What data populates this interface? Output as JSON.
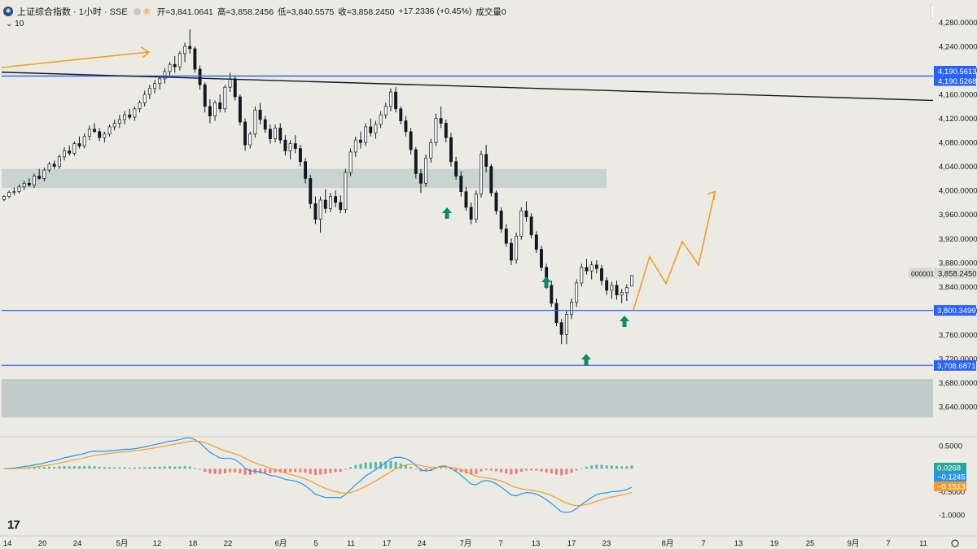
{
  "header": {
    "title": "上证综合指数 · 1小时 · SSE",
    "badge": "D",
    "open": "开=3,841.0641",
    "high": "高=3,858.2456",
    "low": "低=3,840.5575",
    "close": "收=3,858.2450",
    "change": "+17.2336 (+0.45%)",
    "volume": "成交量0",
    "sub": "10",
    "scale_mode": "point"
  },
  "chart_data": {
    "type": "candlestick",
    "symbol": "上证综合指数",
    "interval": "1小时",
    "exchange": "SSE",
    "price_axis": {
      "ticks": [
        3640,
        3680,
        3720,
        3760,
        3800,
        3840,
        3880,
        3920,
        3960,
        4000,
        4040,
        4080,
        4120,
        4160,
        4200,
        4240,
        4280
      ],
      "tick_labels": [
        "3,640.0000",
        "3,680.0000",
        "3,720.0000",
        "3,760.0000",
        "3,800.0000",
        "3,840.0000",
        "3,880.0000",
        "3,920.0000",
        "3,960.0000",
        "4,000.0000",
        "4,040.0000",
        "4,080.0000",
        "4,120.0000",
        "4,160.0000",
        "4,200.0000",
        "4,240.0000",
        "4,280.0000"
      ],
      "range": [
        3600,
        4300
      ]
    },
    "time_axis_labels": [
      "14",
      "20",
      "24",
      "5月",
      "12",
      "18",
      "22",
      "6月",
      "5",
      "11",
      "17",
      "24",
      "7月",
      "7",
      "13",
      "17",
      "23",
      "8月",
      "7",
      "13",
      "19",
      "25",
      "9月",
      "7",
      "11"
    ],
    "price_lines": [
      {
        "label": "4,190.5613",
        "value": 4190.5613,
        "color": "#2962ff"
      },
      {
        "label": "4,190.5268",
        "value": 4190.5268,
        "color": "#2962ff"
      },
      {
        "label": "3,800.3499",
        "value": 3800.3499,
        "color": "#2962ff"
      },
      {
        "label": "3,708.6871",
        "value": 3708.6871,
        "color": "#2962ff"
      }
    ],
    "last_price": {
      "symbol_code": "000001",
      "label": "3,858.2450",
      "value": 3858.245
    },
    "trendline": {
      "from": {
        "time": "14",
        "price": 4197
      },
      "to": {
        "time": "11",
        "price": 4150
      },
      "color": "#131722"
    },
    "zones": [
      {
        "from_price": 4004,
        "to_price": 4036,
        "color": "#c3cfcd"
      },
      {
        "from_price": 3622,
        "to_price": 3686,
        "color": "#b8c6c6"
      }
    ],
    "projection": {
      "color": "#f39c2b",
      "points": [
        3801,
        3890,
        3845,
        3915,
        3876,
        3998
      ]
    },
    "buy_arrows": 4,
    "candles": [
      [
        3985,
        3992,
        3982,
        3990
      ],
      [
        3990,
        4000,
        3987,
        3997
      ],
      [
        3997,
        4005,
        3992,
        3998
      ],
      [
        3998,
        4010,
        3995,
        4006
      ],
      [
        4006,
        4016,
        4001,
        4012
      ],
      [
        4012,
        4020,
        4006,
        4009
      ],
      [
        4009,
        4028,
        4004,
        4024
      ],
      [
        4024,
        4036,
        4018,
        4020
      ],
      [
        4020,
        4038,
        4015,
        4034
      ],
      [
        4034,
        4048,
        4030,
        4044
      ],
      [
        4044,
        4050,
        4036,
        4040
      ],
      [
        4040,
        4060,
        4036,
        4056
      ],
      [
        4056,
        4072,
        4050,
        4066
      ],
      [
        4066,
        4075,
        4058,
        4062
      ],
      [
        4062,
        4082,
        4058,
        4078
      ],
      [
        4078,
        4090,
        4070,
        4074
      ],
      [
        4074,
        4095,
        4070,
        4090
      ],
      [
        4090,
        4108,
        4084,
        4102
      ],
      [
        4102,
        4112,
        4096,
        4098
      ],
      [
        4098,
        4104,
        4082,
        4088
      ],
      [
        4088,
        4098,
        4080,
        4094
      ],
      [
        4094,
        4110,
        4090,
        4106
      ],
      [
        4106,
        4118,
        4100,
        4112
      ],
      [
        4112,
        4126,
        4104,
        4118
      ],
      [
        4118,
        4132,
        4110,
        4126
      ],
      [
        4126,
        4136,
        4118,
        4122
      ],
      [
        4122,
        4140,
        4116,
        4136
      ],
      [
        4136,
        4150,
        4130,
        4146
      ],
      [
        4146,
        4166,
        4140,
        4160
      ],
      [
        4160,
        4176,
        4152,
        4170
      ],
      [
        4170,
        4184,
        4162,
        4178
      ],
      [
        4178,
        4190,
        4168,
        4186
      ],
      [
        4186,
        4204,
        4178,
        4198
      ],
      [
        4198,
        4214,
        4190,
        4210
      ],
      [
        4210,
        4224,
        4196,
        4206
      ],
      [
        4206,
        4232,
        4200,
        4228
      ],
      [
        4228,
        4246,
        4214,
        4240
      ],
      [
        4240,
        4268,
        4228,
        4236
      ],
      [
        4236,
        4240,
        4196,
        4202
      ],
      [
        4202,
        4208,
        4168,
        4176
      ],
      [
        4176,
        4180,
        4130,
        4140
      ],
      [
        4140,
        4152,
        4112,
        4124
      ],
      [
        4124,
        4150,
        4116,
        4146
      ],
      [
        4146,
        4160,
        4130,
        4136
      ],
      [
        4136,
        4176,
        4130,
        4172
      ],
      [
        4172,
        4196,
        4164,
        4186
      ],
      [
        4186,
        4192,
        4150,
        4156
      ],
      [
        4156,
        4160,
        4108,
        4114
      ],
      [
        4114,
        4120,
        4066,
        4076
      ],
      [
        4076,
        4098,
        4070,
        4094
      ],
      [
        4094,
        4140,
        4088,
        4134
      ],
      [
        4134,
        4146,
        4110,
        4118
      ],
      [
        4118,
        4124,
        4096,
        4102
      ],
      [
        4102,
        4110,
        4078,
        4086
      ],
      [
        4086,
        4110,
        4080,
        4104
      ],
      [
        4104,
        4112,
        4078,
        4084
      ],
      [
        4084,
        4092,
        4058,
        4066
      ],
      [
        4066,
        4084,
        4052,
        4078
      ],
      [
        4078,
        4092,
        4062,
        4070
      ],
      [
        4070,
        4076,
        4040,
        4048
      ],
      [
        4048,
        4054,
        4012,
        4020
      ],
      [
        4020,
        4026,
        3970,
        3978
      ],
      [
        3978,
        3990,
        3944,
        3952
      ],
      [
        3952,
        3990,
        3930,
        3984
      ],
      [
        3984,
        4002,
        3962,
        3970
      ],
      [
        3970,
        3996,
        3964,
        3990
      ],
      [
        3990,
        4000,
        3972,
        3980
      ],
      [
        3980,
        3992,
        3962,
        3968
      ],
      [
        3968,
        4036,
        3962,
        4030
      ],
      [
        4030,
        4070,
        4024,
        4064
      ],
      [
        4064,
        4090,
        4056,
        4084
      ],
      [
        4084,
        4098,
        4070,
        4080
      ],
      [
        4080,
        4112,
        4074,
        4106
      ],
      [
        4106,
        4120,
        4090,
        4096
      ],
      [
        4096,
        4116,
        4086,
        4110
      ],
      [
        4110,
        4132,
        4104,
        4126
      ],
      [
        4126,
        4146,
        4120,
        4140
      ],
      [
        4140,
        4170,
        4132,
        4164
      ],
      [
        4164,
        4172,
        4130,
        4136
      ],
      [
        4136,
        4140,
        4110,
        4116
      ],
      [
        4116,
        4124,
        4090,
        4098
      ],
      [
        4098,
        4104,
        4060,
        4068
      ],
      [
        4068,
        4072,
        4020,
        4028
      ],
      [
        4028,
        4036,
        3996,
        4012
      ],
      [
        4012,
        4060,
        4006,
        4054
      ],
      [
        4054,
        4086,
        4046,
        4080
      ],
      [
        4080,
        4128,
        4074,
        4120
      ],
      [
        4120,
        4140,
        4104,
        4112
      ],
      [
        4112,
        4118,
        4080,
        4088
      ],
      [
        4088,
        4096,
        4040,
        4048
      ],
      [
        4048,
        4056,
        4018,
        4024
      ],
      [
        4024,
        4032,
        3990,
        3998
      ],
      [
        3998,
        4006,
        3966,
        3972
      ],
      [
        3972,
        3980,
        3944,
        3952
      ],
      [
        3952,
        4000,
        3946,
        3994
      ],
      [
        3994,
        4066,
        3988,
        4060
      ],
      [
        4060,
        4076,
        4030,
        4040
      ],
      [
        4040,
        4044,
        3990,
        3996
      ],
      [
        3996,
        4000,
        3960,
        3966
      ],
      [
        3966,
        3972,
        3930,
        3936
      ],
      [
        3936,
        3944,
        3906,
        3912
      ],
      [
        3912,
        3920,
        3876,
        3884
      ],
      [
        3884,
        3930,
        3878,
        3924
      ],
      [
        3924,
        3972,
        3918,
        3966
      ],
      [
        3966,
        3982,
        3948,
        3956
      ],
      [
        3956,
        3962,
        3920,
        3926
      ],
      [
        3926,
        3932,
        3896,
        3902
      ],
      [
        3902,
        3908,
        3866,
        3872
      ],
      [
        3872,
        3878,
        3836,
        3842
      ],
      [
        3842,
        3850,
        3806,
        3812
      ],
      [
        3812,
        3820,
        3774,
        3780
      ],
      [
        3780,
        3786,
        3744,
        3760
      ],
      [
        3760,
        3800,
        3744,
        3794
      ],
      [
        3794,
        3820,
        3786,
        3814
      ],
      [
        3814,
        3852,
        3806,
        3846
      ],
      [
        3846,
        3878,
        3840,
        3872
      ],
      [
        3872,
        3886,
        3860,
        3866
      ],
      [
        3866,
        3882,
        3852,
        3876
      ],
      [
        3876,
        3884,
        3862,
        3870
      ],
      [
        3870,
        3876,
        3842,
        3850
      ],
      [
        3850,
        3856,
        3826,
        3834
      ],
      [
        3834,
        3848,
        3820,
        3842
      ],
      [
        3842,
        3850,
        3818,
        3826
      ],
      [
        3826,
        3836,
        3812,
        3830
      ],
      [
        3830,
        3844,
        3816,
        3838
      ],
      [
        3841.0641,
        3858.2456,
        3840.5575,
        3858.245
      ]
    ],
    "macd": {
      "axis_ticks": [
        "0.5000",
        "-0.5000",
        "-1.0000"
      ],
      "axis_values": [
        0.5,
        -0.5,
        -1.0
      ],
      "range": [
        -1.15,
        0.65
      ],
      "values": {
        "histogram": 0.0268,
        "macd": -0.1245,
        "signal": -0.1513
      },
      "colors": {
        "macd": "#2196f3",
        "signal": "#f39c2b",
        "hist_pos": "#26a69a",
        "hist_neg": "#ef5350"
      }
    }
  }
}
